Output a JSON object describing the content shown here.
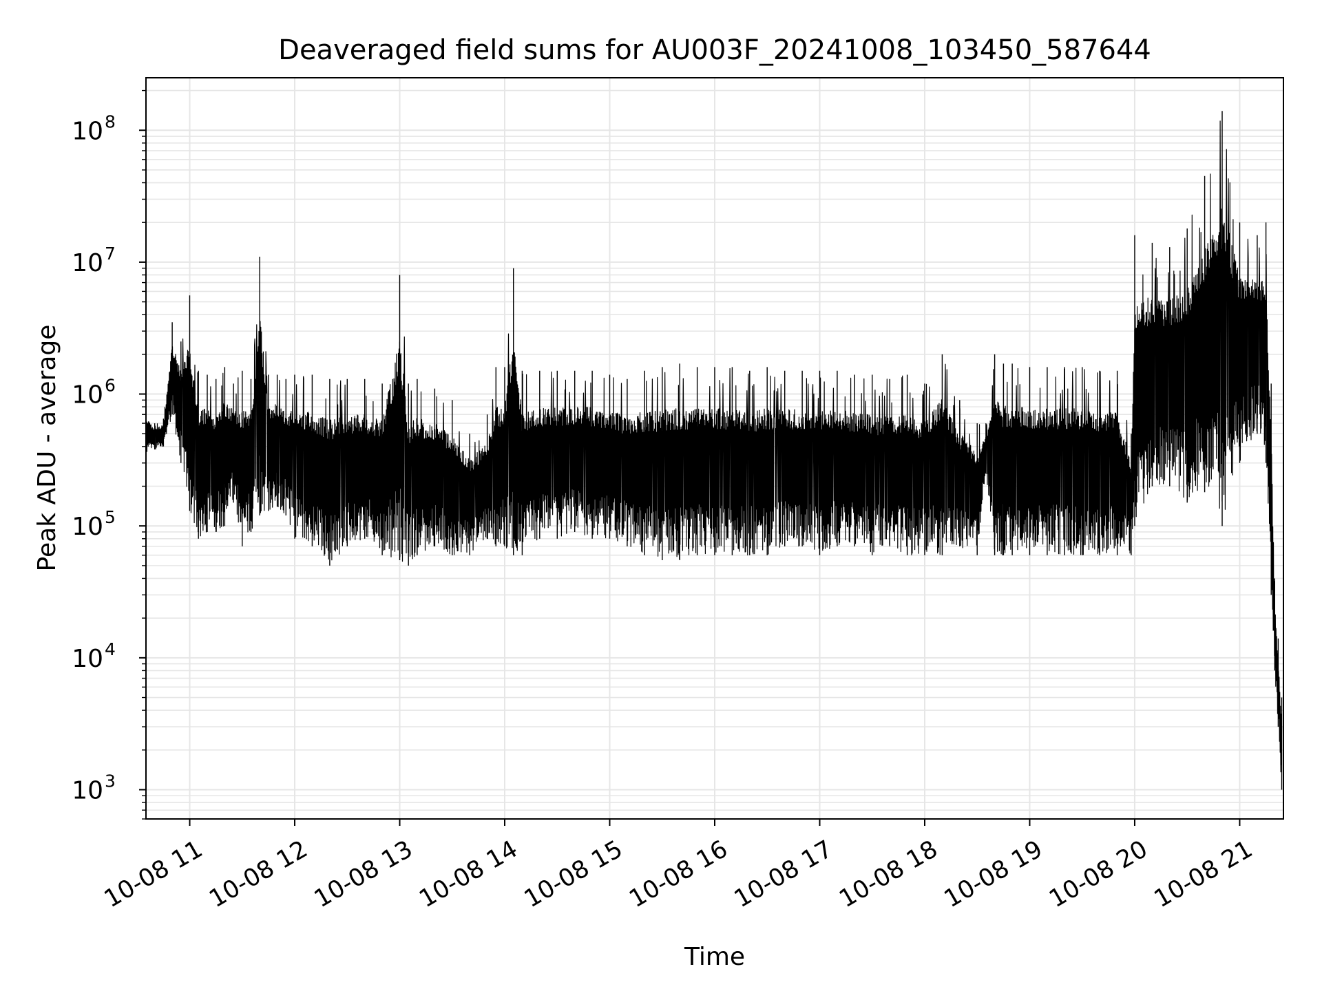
{
  "chart_data": {
    "type": "line",
    "title": "Deaveraged field sums for AU003F_20241008_103450_587644",
    "xlabel": "Time",
    "ylabel": "Peak ADU - average",
    "yscale": "log",
    "grid": true,
    "grid_minor": true,
    "legend": "none",
    "line_color": "#000000",
    "grid_color": "#e6e6e6",
    "xlim": [
      "2024-10-08 10:35",
      "2024-10-08 21:25"
    ],
    "ylim": [
      600,
      250000000
    ],
    "x_ticks": [
      "10-08 11",
      "10-08 12",
      "10-08 13",
      "10-08 14",
      "10-08 15",
      "10-08 16",
      "10-08 17",
      "10-08 18",
      "10-08 19",
      "10-08 20",
      "10-08 21"
    ],
    "y_ticks": [
      {
        "base": "10",
        "exp": "3"
      },
      {
        "base": "10",
        "exp": "4"
      },
      {
        "base": "10",
        "exp": "5"
      },
      {
        "base": "10",
        "exp": "6"
      },
      {
        "base": "10",
        "exp": "7"
      },
      {
        "base": "10",
        "exp": "8"
      }
    ],
    "series": [
      {
        "x": [
          "2024-10-08 10:35",
          "2024-10-08 10:40",
          "2024-10-08 10:45",
          "2024-10-08 10:50",
          "2024-10-08 10:55",
          "2024-10-08 11:00",
          "2024-10-08 11:05",
          "2024-10-08 11:10",
          "2024-10-08 11:15",
          "2024-10-08 11:20",
          "2024-10-08 11:25",
          "2024-10-08 11:30",
          "2024-10-08 11:35",
          "2024-10-08 11:40",
          "2024-10-08 11:45",
          "2024-10-08 11:50",
          "2024-10-08 11:55",
          "2024-10-08 12:00",
          "2024-10-08 12:10",
          "2024-10-08 12:20",
          "2024-10-08 12:30",
          "2024-10-08 12:40",
          "2024-10-08 12:50",
          "2024-10-08 13:00",
          "2024-10-08 13:05",
          "2024-10-08 13:10",
          "2024-10-08 13:20",
          "2024-10-08 13:30",
          "2024-10-08 13:40",
          "2024-10-08 13:50",
          "2024-10-08 13:55",
          "2024-10-08 14:00",
          "2024-10-08 14:05",
          "2024-10-08 14:10",
          "2024-10-08 14:20",
          "2024-10-08 14:30",
          "2024-10-08 14:40",
          "2024-10-08 14:50",
          "2024-10-08 15:00",
          "2024-10-08 15:10",
          "2024-10-08 15:20",
          "2024-10-08 15:30",
          "2024-10-08 15:40",
          "2024-10-08 15:50",
          "2024-10-08 16:00",
          "2024-10-08 16:10",
          "2024-10-08 16:20",
          "2024-10-08 16:30",
          "2024-10-08 16:40",
          "2024-10-08 16:50",
          "2024-10-08 17:00",
          "2024-10-08 17:10",
          "2024-10-08 17:20",
          "2024-10-08 17:30",
          "2024-10-08 17:40",
          "2024-10-08 17:50",
          "2024-10-08 18:00",
          "2024-10-08 18:10",
          "2024-10-08 18:20",
          "2024-10-08 18:30",
          "2024-10-08 18:35",
          "2024-10-08 18:40",
          "2024-10-08 18:45",
          "2024-10-08 18:50",
          "2024-10-08 19:00",
          "2024-10-08 19:10",
          "2024-10-08 19:20",
          "2024-10-08 19:30",
          "2024-10-08 19:40",
          "2024-10-08 19:50",
          "2024-10-08 19:58",
          "2024-10-08 20:00",
          "2024-10-08 20:10",
          "2024-10-08 20:20",
          "2024-10-08 20:30",
          "2024-10-08 20:40",
          "2024-10-08 20:50",
          "2024-10-08 21:00",
          "2024-10-08 21:10",
          "2024-10-08 21:15",
          "2024-10-08 21:18",
          "2024-10-08 21:20",
          "2024-10-08 21:22",
          "2024-10-08 21:24"
        ],
        "low": [
          350000,
          380000,
          400000,
          700000,
          300000,
          130000,
          80000,
          90000,
          90000,
          100000,
          150000,
          70000,
          90000,
          120000,
          130000,
          140000,
          120000,
          80000,
          70000,
          50000,
          70000,
          80000,
          60000,
          55000,
          50000,
          60000,
          70000,
          60000,
          60000,
          80000,
          70000,
          70000,
          60000,
          60000,
          80000,
          80000,
          90000,
          80000,
          80000,
          70000,
          60000,
          55000,
          55000,
          60000,
          60000,
          60000,
          60000,
          60000,
          70000,
          70000,
          60000,
          70000,
          70000,
          60000,
          70000,
          60000,
          60000,
          60000,
          70000,
          60000,
          250000,
          60000,
          60000,
          60000,
          60000,
          60000,
          60000,
          60000,
          60000,
          60000,
          60000,
          100000,
          200000,
          200000,
          150000,
          180000,
          100000,
          300000,
          500000,
          300000,
          30000,
          8000,
          3000,
          1000
        ],
        "high": [
          800000,
          600000,
          650000,
          3500000,
          2500000,
          5600000,
          1500000,
          1400000,
          1300000,
          1600000,
          1200000,
          1500000,
          1300000,
          11000000,
          1400000,
          1400000,
          1300000,
          1400000,
          1400000,
          1300000,
          1300000,
          1300000,
          1200000,
          8000000,
          1200000,
          1300000,
          1100000,
          900000,
          500000,
          700000,
          1600000,
          1600000,
          9000000,
          1500000,
          1500000,
          1500000,
          1500000,
          1500000,
          1400000,
          1300000,
          1500000,
          1600000,
          1700000,
          1600000,
          1600000,
          1600000,
          1500000,
          1600000,
          1500000,
          1500000,
          1500000,
          1500000,
          1400000,
          1400000,
          1300000,
          1400000,
          1200000,
          2000000,
          900000,
          600000,
          600000,
          2000000,
          1700000,
          1700000,
          1600000,
          1600000,
          1600000,
          1600000,
          1500000,
          1500000,
          500000,
          16000000,
          14000000,
          13000000,
          18000000,
          45000000,
          140000000,
          20000000,
          16000000,
          20000000,
          1200000,
          40000,
          14000,
          5000
        ]
      }
    ]
  }
}
